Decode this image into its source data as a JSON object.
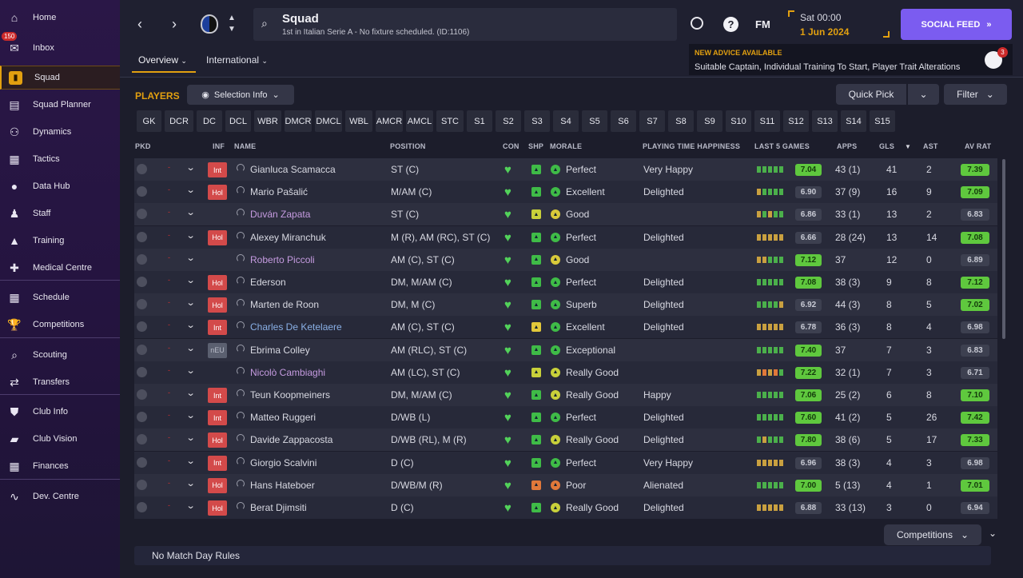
{
  "sidebar": {
    "inbox_badge": "150",
    "items": [
      {
        "label": "Home",
        "icon": "home-icon"
      },
      {
        "label": "Inbox",
        "icon": "inbox-icon"
      },
      {
        "label": "Squad",
        "icon": "squad-icon"
      },
      {
        "label": "Squad Planner",
        "icon": "clipboard-icon"
      },
      {
        "label": "Dynamics",
        "icon": "dynamics-icon"
      },
      {
        "label": "Tactics",
        "icon": "tactics-icon"
      },
      {
        "label": "Data Hub",
        "icon": "data-hub-icon"
      },
      {
        "label": "Staff",
        "icon": "staff-icon"
      },
      {
        "label": "Training",
        "icon": "training-icon"
      },
      {
        "label": "Medical Centre",
        "icon": "medical-icon"
      },
      {
        "label": "Schedule",
        "icon": "calendar-icon"
      },
      {
        "label": "Competitions",
        "icon": "trophy-icon"
      },
      {
        "label": "Scouting",
        "icon": "search-icon"
      },
      {
        "label": "Transfers",
        "icon": "transfers-icon"
      },
      {
        "label": "Club Info",
        "icon": "shield-icon"
      },
      {
        "label": "Club Vision",
        "icon": "briefcase-icon"
      },
      {
        "label": "Finances",
        "icon": "money-icon"
      },
      {
        "label": "Dev. Centre",
        "icon": "dev-centre-icon"
      }
    ]
  },
  "header": {
    "title": "Squad",
    "subtitle": "1st in Italian Serie A - No fixture scheduled. (ID:1106)",
    "fm_label": "FM",
    "date_time": "Sat 00:00",
    "date": "1 Jun 2024",
    "social_feed": "SOCIAL FEED",
    "advice_title": "NEW ADVICE AVAILABLE",
    "advice_text": "Suitable Captain, Individual Training To Start, Player Trait Alterations",
    "advice_count": "3",
    "tabs": [
      "Overview",
      "International"
    ]
  },
  "toolbar": {
    "players_label": "PLAYERS",
    "selection_info": "Selection Info",
    "quick_pick": "Quick Pick",
    "filter": "Filter"
  },
  "positions": [
    "GK",
    "DCR",
    "DC",
    "DCL",
    "WBR",
    "DMCR",
    "DMCL",
    "WBL",
    "AMCR",
    "AMCL",
    "STC",
    "S1",
    "S2",
    "S3",
    "S4",
    "S5",
    "S6",
    "S7",
    "S8",
    "S9",
    "S10",
    "S11",
    "S12",
    "S13",
    "S14",
    "S15"
  ],
  "columns": {
    "pkd": "PKD",
    "inf": "INF",
    "name": "NAME",
    "position": "POSITION",
    "con": "CON",
    "shp": "SHP",
    "morale": "MORALE",
    "pth": "PLAYING TIME HAPPINESS",
    "last5": "LAST 5 GAMES",
    "apps": "APPS",
    "gls": "GLS",
    "ast": "AST",
    "avrat": "AV RAT"
  },
  "players": [
    {
      "name": "Gianluca Scamacca",
      "inf": "Int",
      "position": "ST (C)",
      "morale": "Perfect",
      "pth": "Very Happy",
      "form": "7.04",
      "apps": "43 (1)",
      "gls": "41",
      "ast": "2",
      "avrat": "7.39"
    },
    {
      "name": "Mario Pašalić",
      "inf": "Hol",
      "position": "M/AM (C)",
      "morale": "Excellent",
      "pth": "Delighted",
      "form": "6.90",
      "apps": "37 (9)",
      "gls": "16",
      "ast": "9",
      "avrat": "7.09"
    },
    {
      "name": "Duván Zapata",
      "inf": "",
      "position": "ST (C)",
      "morale": "Good",
      "pth": "",
      "form": "6.86",
      "apps": "33 (1)",
      "gls": "13",
      "ast": "2",
      "avrat": "6.83"
    },
    {
      "name": "Alexey Miranchuk",
      "inf": "Hol",
      "position": "M (R), AM (RC), ST (C)",
      "morale": "Perfect",
      "pth": "Delighted",
      "form": "6.66",
      "apps": "28 (24)",
      "gls": "13",
      "ast": "14",
      "avrat": "7.08"
    },
    {
      "name": "Roberto Piccoli",
      "inf": "",
      "position": "AM (C), ST (C)",
      "morale": "Good",
      "pth": "",
      "form": "7.12",
      "apps": "37",
      "gls": "12",
      "ast": "0",
      "avrat": "6.89"
    },
    {
      "name": "Ederson",
      "inf": "Hol",
      "position": "DM, M/AM (C)",
      "morale": "Perfect",
      "pth": "Delighted",
      "form": "7.08",
      "apps": "38 (3)",
      "gls": "9",
      "ast": "8",
      "avrat": "7.12"
    },
    {
      "name": "Marten de Roon",
      "inf": "Hol",
      "position": "DM, M (C)",
      "morale": "Superb",
      "pth": "Delighted",
      "form": "6.92",
      "apps": "44 (3)",
      "gls": "8",
      "ast": "5",
      "avrat": "7.02"
    },
    {
      "name": "Charles De Ketelaere",
      "inf": "Int",
      "position": "AM (C), ST (C)",
      "morale": "Excellent",
      "pth": "Delighted",
      "form": "6.78",
      "apps": "36 (3)",
      "gls": "8",
      "ast": "4",
      "avrat": "6.98"
    },
    {
      "name": "Ebrima Colley",
      "inf": "nEU",
      "position": "AM (RLC), ST (C)",
      "morale": "Exceptional",
      "pth": "",
      "form": "7.40",
      "apps": "37",
      "gls": "7",
      "ast": "3",
      "avrat": "6.83"
    },
    {
      "name": "Nicolò Cambiaghi",
      "inf": "",
      "position": "AM (LC), ST (C)",
      "morale": "Really Good",
      "pth": "",
      "form": "7.22",
      "apps": "32 (1)",
      "gls": "7",
      "ast": "3",
      "avrat": "6.71"
    },
    {
      "name": "Teun Koopmeiners",
      "inf": "Int",
      "position": "DM, M/AM (C)",
      "morale": "Really Good",
      "pth": "Happy",
      "form": "7.06",
      "apps": "25 (2)",
      "gls": "6",
      "ast": "8",
      "avrat": "7.10"
    },
    {
      "name": "Matteo Ruggeri",
      "inf": "Int",
      "position": "D/WB (L)",
      "morale": "Perfect",
      "pth": "Delighted",
      "form": "7.60",
      "apps": "41 (2)",
      "gls": "5",
      "ast": "26",
      "avrat": "7.42"
    },
    {
      "name": "Davide Zappacosta",
      "inf": "Hol",
      "position": "D/WB (RL), M (R)",
      "morale": "Really Good",
      "pth": "Delighted",
      "form": "7.80",
      "apps": "38 (6)",
      "gls": "5",
      "ast": "17",
      "avrat": "7.33"
    },
    {
      "name": "Giorgio Scalvini",
      "inf": "Int",
      "position": "D (C)",
      "morale": "Perfect",
      "pth": "Very Happy",
      "form": "6.96",
      "apps": "38 (3)",
      "gls": "4",
      "ast": "3",
      "avrat": "6.98"
    },
    {
      "name": "Hans Hateboer",
      "inf": "Hol",
      "position": "D/WB/M (R)",
      "morale": "Poor",
      "pth": "Alienated",
      "form": "7.00",
      "apps": "5 (13)",
      "gls": "4",
      "ast": "1",
      "avrat": "7.01"
    },
    {
      "name": "Berat Djimsiti",
      "inf": "Hol",
      "position": "D (C)",
      "morale": "Really Good",
      "pth": "Delighted",
      "form": "6.88",
      "apps": "33 (13)",
      "gls": "3",
      "ast": "0",
      "avrat": "6.94"
    }
  ],
  "footer": {
    "competitions": "Competitions",
    "rules": "No Match Day Rules"
  },
  "colors": {
    "accent": "#e2a010",
    "social": "#7b5cf0",
    "good": "#5fc83e",
    "sidebar": "#2a1747"
  }
}
